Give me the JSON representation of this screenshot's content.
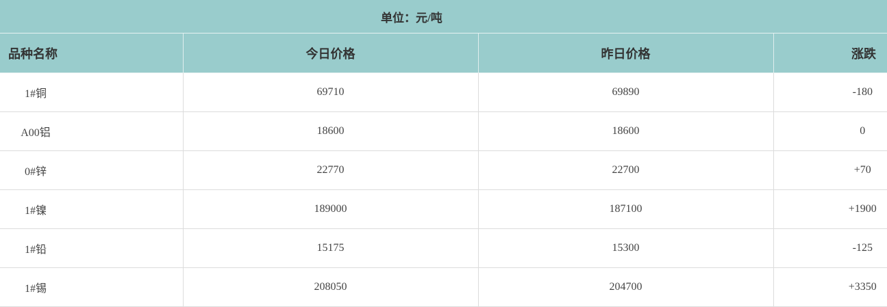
{
  "unit_label": "单位：元/吨",
  "columns": [
    "品种名称",
    "今日价格",
    "昨日价格",
    "涨跌"
  ],
  "rows": [
    [
      "1#铜",
      "69710",
      "69890",
      "-180"
    ],
    [
      "A00铝",
      "18600",
      "18600",
      "0"
    ],
    [
      "0#锌",
      "22770",
      "22700",
      "+70"
    ],
    [
      "1#镍",
      "189000",
      "187100",
      "+1900"
    ],
    [
      "1#铅",
      "15175",
      "15300",
      "-125"
    ],
    [
      "1#锡",
      "208050",
      "204700",
      "+3350"
    ]
  ],
  "colors": {
    "header_bg": "#99cccc",
    "border": "#dcdcdc"
  }
}
